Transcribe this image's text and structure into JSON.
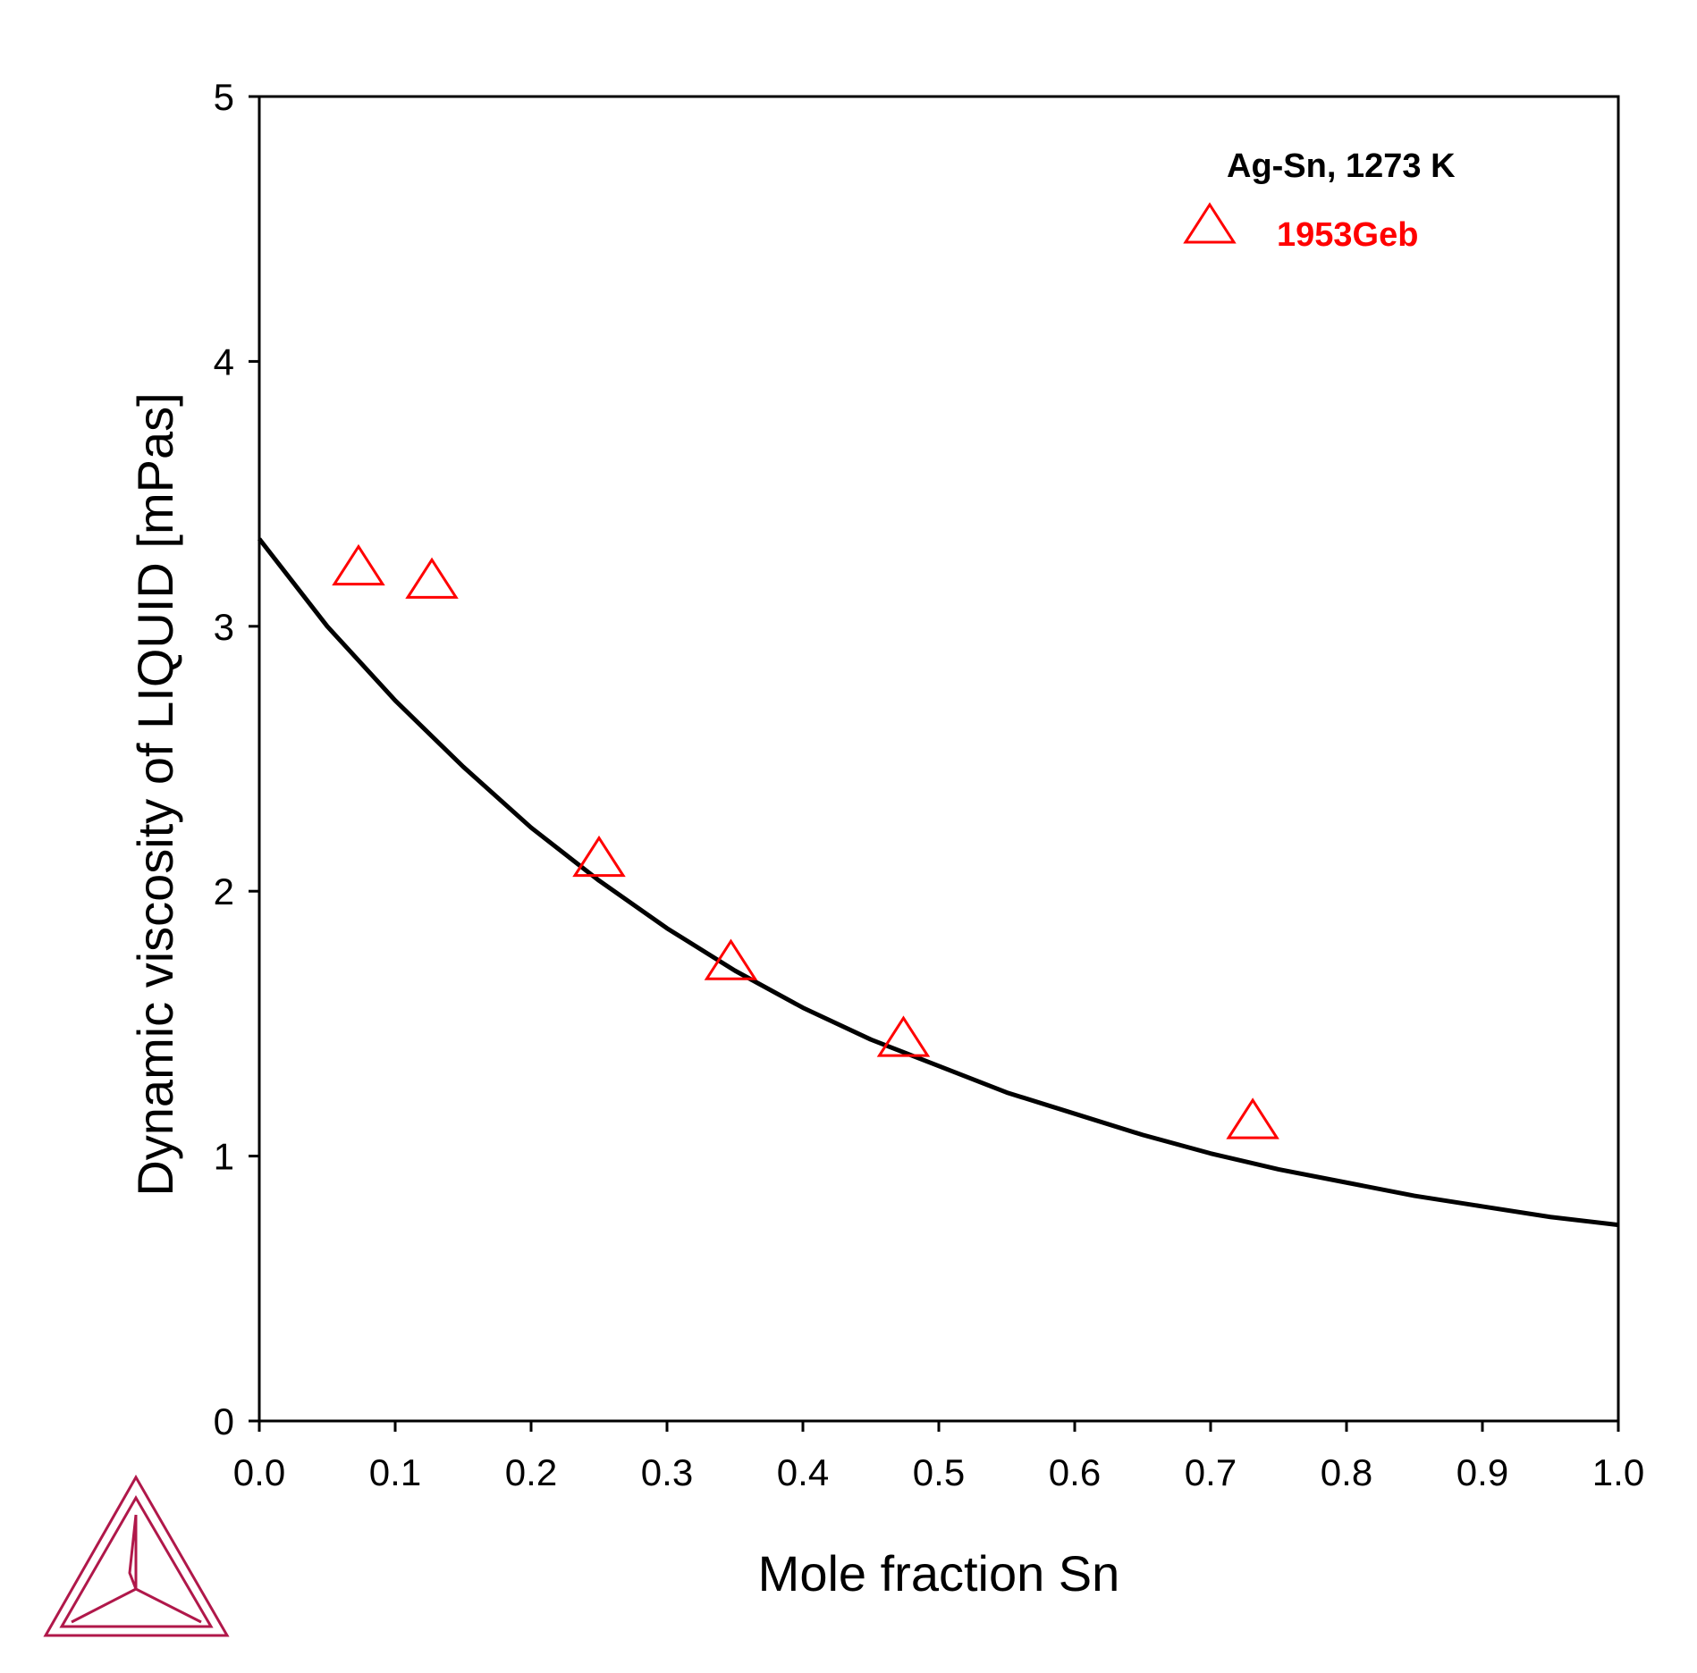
{
  "chart_data": {
    "type": "scatter",
    "xlabel": "Mole fraction Sn",
    "ylabel": "Dynamic viscosity of LIQUID [mPas]",
    "xlim": [
      0.0,
      1.0
    ],
    "ylim": [
      0,
      5
    ],
    "x_ticks": [
      "0.0",
      "0.1",
      "0.2",
      "0.3",
      "0.4",
      "0.5",
      "0.6",
      "0.7",
      "0.8",
      "0.9",
      "1.0"
    ],
    "y_ticks": [
      "0",
      "1",
      "2",
      "3",
      "4",
      "5"
    ],
    "legend_title": "Ag-Sn, 1273 K",
    "legend_position": "top-right",
    "grid": false,
    "series": [
      {
        "kind": "line",
        "color": "#000000",
        "x": [
          0.0,
          0.05,
          0.1,
          0.15,
          0.2,
          0.25,
          0.3,
          0.35,
          0.4,
          0.45,
          0.5,
          0.55,
          0.6,
          0.65,
          0.7,
          0.75,
          0.8,
          0.85,
          0.9,
          0.95,
          1.0
        ],
        "y": [
          3.33,
          3.0,
          2.72,
          2.47,
          2.24,
          2.04,
          1.86,
          1.7,
          1.56,
          1.44,
          1.34,
          1.24,
          1.16,
          1.08,
          1.01,
          0.95,
          0.9,
          0.85,
          0.81,
          0.77,
          0.74
        ]
      },
      {
        "name": "1953Geb",
        "kind": "scatter",
        "marker": "triangle-open",
        "color": "#ff0000",
        "x": [
          0.073,
          0.127,
          0.25,
          0.347,
          0.474,
          0.731
        ],
        "y": [
          3.22,
          3.17,
          2.12,
          1.73,
          1.44,
          1.13
        ]
      }
    ]
  },
  "logo": {
    "name": "thermo-calc-triangle-logo",
    "color": "#b0184a"
  }
}
